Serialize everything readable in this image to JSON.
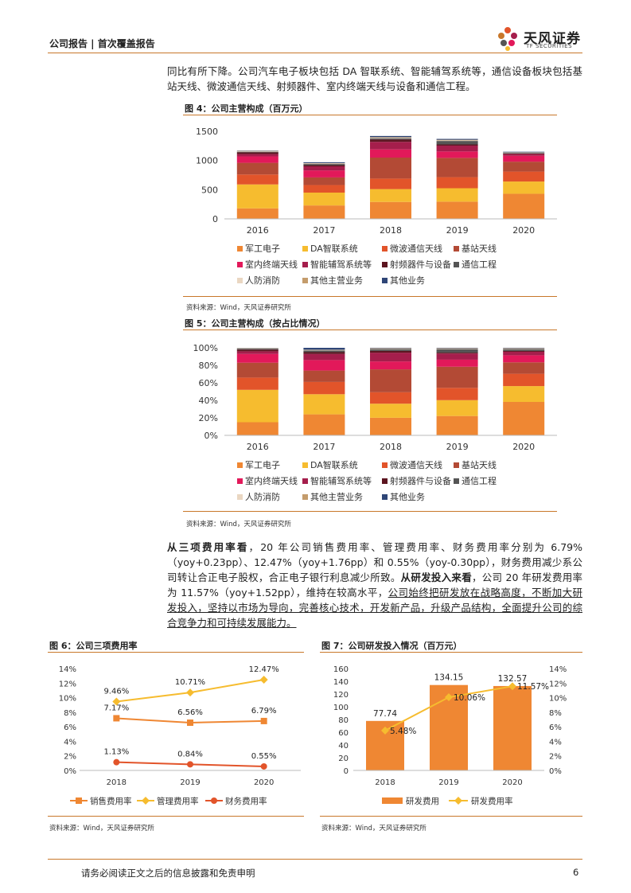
{
  "header": {
    "title": "公司报告 | 首次覆盖报告",
    "logo_cn": "天风证券",
    "logo_en": "TF SECURITIES"
  },
  "intro": {
    "text": "同比有所下降。公司汽车电子板块包括 DA 智联系统、智能辅驾系统等，通信设备板块包括基站天线、微波通信天线、射频器件、室内终端天线与设备和通信工程。"
  },
  "fig4": {
    "title": "图 4：公司主营构成（百万元）",
    "source": "资料来源：Wind，天风证券研究所"
  },
  "fig5": {
    "title": "图 5：公司主营构成（按占比情况）",
    "source": "资料来源：Wind，天风证券研究所"
  },
  "body": {
    "s1_lead": "从三项费用率看",
    "s1": "，20 年公司销售费用率、管理费用率、财务费用率分别为 6.79%（yoy+0.23pp）、12.47%（yoy+1.76pp）和 0.55%（yoy-0.30pp），财务费用减少系公司转让合正电子股权，合正电子银行利息减少所致。",
    "s2_lead": "从研发投入来看",
    "s2": "，公司 20 年研发费用率为 11.57%（yoy+1.52pp），维持在较高水平，",
    "s3": "公司始终把研发放在战略高度，不断加大研发投入，坚持以市场为导向，完善核心技术，开发新产品，升级产品结构，全面提升公司的综合竞争力和可持续发展能力。"
  },
  "fig6": {
    "title": "图 6：公司三项费用率",
    "source": "资料来源：Wind，天风证券研究所"
  },
  "fig7": {
    "title": "图 7：公司研发投入情况（百万元）",
    "source": "资料来源：Wind，天风证券研究所"
  },
  "footer": {
    "text": "请务必阅读正文之后的信息披露和免责申明",
    "page": "6"
  },
  "chart_data": [
    {
      "id": "fig4",
      "type": "bar",
      "stacked": true,
      "categories": [
        "2016",
        "2017",
        "2018",
        "2019",
        "2020"
      ],
      "ylim": [
        0,
        1500
      ],
      "yticks": [
        "0",
        "500",
        "1000",
        "1500"
      ],
      "series": [
        {
          "name": "军工电子",
          "color": "#ef8733",
          "values": [
            180,
            230,
            290,
            295,
            430
          ]
        },
        {
          "name": "DA智联系统",
          "color": "#f6bc2f",
          "values": [
            410,
            220,
            220,
            230,
            210
          ]
        },
        {
          "name": "微波通信天线",
          "color": "#e2542a",
          "values": [
            170,
            130,
            180,
            190,
            170
          ]
        },
        {
          "name": "基站天线",
          "color": "#b34a35",
          "values": [
            200,
            130,
            360,
            330,
            170
          ]
        },
        {
          "name": "室内终端天线",
          "color": "#e2195a",
          "values": [
            110,
            120,
            140,
            110,
            100
          ]
        },
        {
          "name": "智能辅驾系统等",
          "color": "#a51e4c",
          "values": [
            40,
            70,
            130,
            100,
            30
          ]
        },
        {
          "name": "射频器件与设备",
          "color": "#5c1420",
          "values": [
            30,
            20,
            40,
            20,
            10
          ]
        },
        {
          "name": "通信工程",
          "color": "#555555",
          "values": [
            10,
            20,
            20,
            60,
            10
          ]
        },
        {
          "name": "人防消防",
          "color": "#ead7c2",
          "values": [
            10,
            10,
            10,
            10,
            5
          ]
        },
        {
          "name": "其他主营业务",
          "color": "#c49c6c",
          "values": [
            5,
            5,
            10,
            10,
            5
          ]
        },
        {
          "name": "其他业务",
          "color": "#2f4677",
          "values": [
            5,
            15,
            20,
            15,
            10
          ]
        }
      ]
    },
    {
      "id": "fig5",
      "type": "bar",
      "stacked": true,
      "percent": true,
      "categories": [
        "2016",
        "2017",
        "2018",
        "2019",
        "2020"
      ],
      "ylim": [
        0,
        100
      ],
      "yticks": [
        "0%",
        "20%",
        "40%",
        "60%",
        "80%",
        "100%"
      ],
      "series": [
        {
          "name": "军工电子",
          "color": "#ef8733",
          "values": [
            15,
            24,
            20,
            22,
            38
          ]
        },
        {
          "name": "DA智联系统",
          "color": "#f6bc2f",
          "values": [
            37,
            23,
            16,
            18,
            18
          ]
        },
        {
          "name": "微波通信天线",
          "color": "#e2542a",
          "values": [
            14,
            14,
            13,
            14,
            14
          ]
        },
        {
          "name": "基站天线",
          "color": "#b34a35",
          "values": [
            17,
            13,
            26,
            24,
            13
          ]
        },
        {
          "name": "室内终端天线",
          "color": "#e2195a",
          "values": [
            10,
            12,
            9,
            8,
            8
          ]
        },
        {
          "name": "智能辅驾系统等",
          "color": "#a51e4c",
          "values": [
            3,
            7,
            10,
            7,
            4
          ]
        },
        {
          "name": "射频器件与设备",
          "color": "#5c1420",
          "values": [
            2,
            2,
            2,
            1,
            1
          ]
        },
        {
          "name": "通信工程",
          "color": "#555555",
          "values": [
            1,
            2,
            2,
            4,
            2
          ]
        },
        {
          "name": "人防消防",
          "color": "#ead7c2",
          "values": [
            0.5,
            0.5,
            0.5,
            0.5,
            0.5
          ]
        },
        {
          "name": "其他主营业务",
          "color": "#c49c6c",
          "values": [
            0.3,
            0.3,
            0.5,
            0.5,
            0.5
          ]
        },
        {
          "name": "其他业务",
          "color": "#2f4677",
          "values": [
            0.2,
            2.2,
            0.5,
            0.5,
            0.5
          ]
        }
      ]
    },
    {
      "id": "fig6",
      "type": "line",
      "categories": [
        "2018",
        "2019",
        "2020"
      ],
      "ylim": [
        0,
        14
      ],
      "yticks": [
        "0%",
        "2%",
        "4%",
        "6%",
        "8%",
        "10%",
        "12%",
        "14%"
      ],
      "series": [
        {
          "name": "销售费用率",
          "color": "#ef8733",
          "marker": "square",
          "values": [
            7.17,
            6.56,
            6.79
          ],
          "labels": [
            "7.17%",
            "6.56%",
            "6.79%"
          ]
        },
        {
          "name": "管理费用率",
          "color": "#f6bc2f",
          "marker": "diamond",
          "values": [
            9.46,
            10.71,
            12.47
          ],
          "labels": [
            "9.46%",
            "10.71%",
            "12.47%"
          ]
        },
        {
          "name": "财务费用率",
          "color": "#e2542a",
          "marker": "circle",
          "values": [
            1.13,
            0.84,
            0.55
          ],
          "labels": [
            "1.13%",
            "0.84%",
            "0.55%"
          ]
        }
      ]
    },
    {
      "id": "fig7",
      "type": "bar",
      "categories": [
        "2018",
        "2019",
        "2020"
      ],
      "ylim": [
        0,
        160
      ],
      "yticks": [
        "0",
        "20",
        "40",
        "60",
        "80",
        "100",
        "120",
        "140",
        "160"
      ],
      "y2lim": [
        0,
        14
      ],
      "y2ticks": [
        "0%",
        "2%",
        "4%",
        "6%",
        "8%",
        "10%",
        "12%",
        "14%"
      ],
      "series": [
        {
          "name": "研发费用",
          "color": "#ef8733",
          "type": "bar",
          "values": [
            77.74,
            134.15,
            132.57
          ],
          "labels": [
            "77.74",
            "134.15",
            "132.57"
          ]
        },
        {
          "name": "研发费用率",
          "color": "#f6bc2f",
          "type": "line",
          "axis": "right",
          "values": [
            5.48,
            10.06,
            11.57
          ],
          "labels": [
            "5.48%",
            "10.06%",
            "11.57%"
          ]
        }
      ]
    }
  ]
}
